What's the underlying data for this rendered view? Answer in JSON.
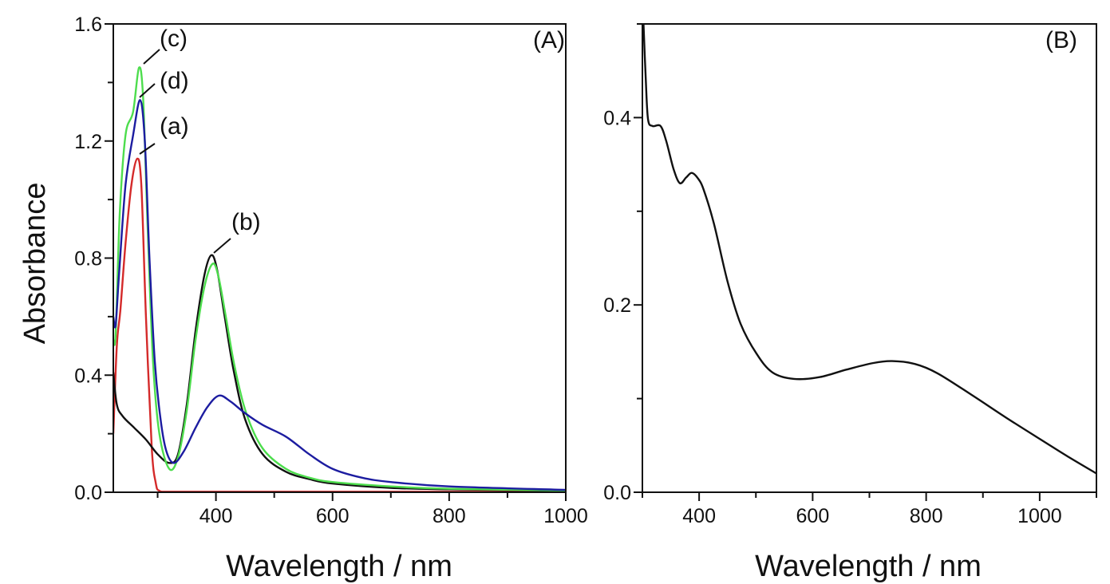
{
  "chart_data": [
    {
      "type": "line",
      "panel_label": "(A)",
      "xlabel": "Wavelength / nm",
      "ylabel": "Absorbance",
      "xlim": [
        224,
        1000
      ],
      "ylim": [
        0,
        1.6
      ],
      "xticks": [
        400,
        600,
        800,
        1000
      ],
      "xtick_labels": [
        "400",
        "600",
        "800",
        "1000"
      ],
      "yticks": [
        0.0,
        0.4,
        0.8,
        1.2,
        1.6
      ],
      "ytick_labels": [
        "0.0",
        "0.4",
        "0.8",
        "1.2",
        "1.6"
      ],
      "grid": false,
      "series": [
        {
          "name": "(a)",
          "color": "#d42a2a",
          "x": [
            224,
            230,
            236,
            245,
            255,
            265,
            272,
            280,
            290,
            297,
            303,
            320,
            400,
            600,
            1000
          ],
          "y": [
            0.2,
            0.5,
            0.62,
            0.85,
            1.05,
            1.14,
            1.05,
            0.6,
            0.15,
            0.03,
            0.005,
            0.002,
            0.002,
            0.002,
            0.002
          ]
        },
        {
          "name": "(b)",
          "color": "#111111",
          "x": [
            224,
            230,
            240,
            260,
            280,
            300,
            320,
            335,
            350,
            365,
            380,
            392,
            402,
            415,
            430,
            450,
            480,
            520,
            560,
            600,
            700,
            800,
            1000
          ],
          "y": [
            0.41,
            0.3,
            0.26,
            0.22,
            0.18,
            0.13,
            0.1,
            0.13,
            0.3,
            0.55,
            0.74,
            0.81,
            0.76,
            0.6,
            0.42,
            0.25,
            0.13,
            0.07,
            0.045,
            0.03,
            0.015,
            0.01,
            0.005
          ]
        },
        {
          "name": "(c)",
          "color": "#4ddd4d",
          "x": [
            224,
            228,
            235,
            245,
            258,
            268,
            275,
            283,
            292,
            303,
            320,
            335,
            350,
            365,
            380,
            394,
            404,
            417,
            432,
            452,
            480,
            520,
            560,
            600,
            700,
            800,
            1000
          ],
          "y": [
            0.52,
            0.54,
            0.95,
            1.22,
            1.3,
            1.45,
            1.35,
            0.9,
            0.45,
            0.2,
            0.08,
            0.12,
            0.28,
            0.52,
            0.7,
            0.78,
            0.74,
            0.6,
            0.43,
            0.27,
            0.15,
            0.08,
            0.05,
            0.035,
            0.02,
            0.012,
            0.006
          ]
        },
        {
          "name": "(d)",
          "color": "#1c1ca0",
          "x": [
            224,
            228,
            234,
            245,
            258,
            270,
            278,
            286,
            295,
            305,
            315,
            328,
            345,
            365,
            385,
            405,
            425,
            450,
            480,
            520,
            560,
            600,
            650,
            700,
            800,
            1000
          ],
          "y": [
            0.6,
            0.57,
            0.75,
            1.05,
            1.22,
            1.34,
            1.2,
            0.8,
            0.45,
            0.25,
            0.14,
            0.1,
            0.14,
            0.22,
            0.29,
            0.33,
            0.31,
            0.27,
            0.23,
            0.19,
            0.13,
            0.08,
            0.05,
            0.035,
            0.02,
            0.008
          ]
        }
      ],
      "annotations": [
        "(a)",
        "(b)",
        "(c)",
        "(d)"
      ]
    },
    {
      "type": "line",
      "panel_label": "(B)",
      "xlabel": "Wavelength / nm",
      "ylabel": "",
      "xlim": [
        300,
        1100
      ],
      "ylim": [
        0,
        0.5
      ],
      "xticks": [
        400,
        600,
        800,
        1000
      ],
      "xtick_labels": [
        "400",
        "600",
        "800",
        "1000"
      ],
      "yticks": [
        0.0,
        0.2,
        0.4
      ],
      "ytick_labels": [
        "0.0",
        "0.2",
        "0.4"
      ],
      "grid": false,
      "series": [
        {
          "color": "#111111",
          "x": [
            302,
            306,
            310,
            318,
            332,
            342,
            355,
            366,
            377,
            387,
            398,
            408,
            426,
            450,
            473,
            501,
            529,
            567,
            613,
            660,
            707,
            740,
            780,
            820,
            880,
            940,
            1000,
            1050,
            1100
          ],
          "y": [
            0.5,
            0.44,
            0.398,
            0.391,
            0.391,
            0.375,
            0.345,
            0.33,
            0.336,
            0.341,
            0.335,
            0.323,
            0.287,
            0.225,
            0.18,
            0.148,
            0.128,
            0.121,
            0.123,
            0.131,
            0.138,
            0.14,
            0.137,
            0.127,
            0.104,
            0.08,
            0.057,
            0.038,
            0.02
          ]
        }
      ]
    }
  ]
}
